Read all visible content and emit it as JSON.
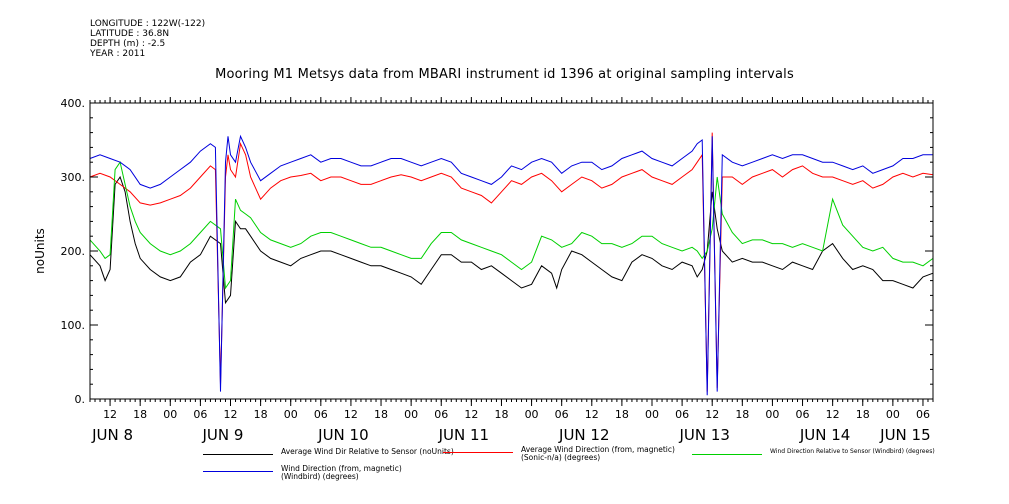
{
  "header": {
    "longitude": "LONGITUDE : 122W(-122)",
    "latitude": "LATITUDE : 36.8N",
    "depth": "DEPTH (m) : -2.5",
    "year": "YEAR : 2011"
  },
  "chart_data": {
    "type": "line",
    "title": "Mooring M1 Metsys data from MBARI instrument id 1396 at original sampling intervals",
    "ylabel": "noUnits",
    "xlabel": "",
    "ylim": [
      0,
      400
    ],
    "yticks": [
      0,
      100,
      200,
      300,
      400
    ],
    "ytick_labels": [
      "0.",
      "100.",
      "200.",
      "300.",
      "400."
    ],
    "x_unit": "hours since 2011-06-08 00:00",
    "xlim": [
      8,
      176
    ],
    "hour_ticks": [
      {
        "x": 12,
        "label": "12"
      },
      {
        "x": 18,
        "label": "18"
      },
      {
        "x": 24,
        "label": "00"
      },
      {
        "x": 30,
        "label": "06"
      },
      {
        "x": 36,
        "label": "12"
      },
      {
        "x": 42,
        "label": "18"
      },
      {
        "x": 48,
        "label": "00"
      },
      {
        "x": 54,
        "label": "06"
      },
      {
        "x": 60,
        "label": "12"
      },
      {
        "x": 66,
        "label": "18"
      },
      {
        "x": 72,
        "label": "00"
      },
      {
        "x": 78,
        "label": "06"
      },
      {
        "x": 84,
        "label": "12"
      },
      {
        "x": 90,
        "label": "18"
      },
      {
        "x": 96,
        "label": "00"
      },
      {
        "x": 102,
        "label": "06"
      },
      {
        "x": 108,
        "label": "12"
      },
      {
        "x": 114,
        "label": "18"
      },
      {
        "x": 120,
        "label": "00"
      },
      {
        "x": 126,
        "label": "06"
      },
      {
        "x": 132,
        "label": "12"
      },
      {
        "x": 138,
        "label": "18"
      },
      {
        "x": 144,
        "label": "00"
      },
      {
        "x": 150,
        "label": "06"
      },
      {
        "x": 156,
        "label": "12"
      },
      {
        "x": 162,
        "label": "18"
      },
      {
        "x": 168,
        "label": "00"
      },
      {
        "x": 174,
        "label": "06"
      }
    ],
    "day_labels": [
      {
        "x": 12.5,
        "label": "JUN  8"
      },
      {
        "x": 34.5,
        "label": "JUN  9"
      },
      {
        "x": 58.5,
        "label": "JUN 10"
      },
      {
        "x": 82.5,
        "label": "JUN 11"
      },
      {
        "x": 106.5,
        "label": "JUN 12"
      },
      {
        "x": 130.5,
        "label": "JUN 13"
      },
      {
        "x": 154.5,
        "label": "JUN 14"
      },
      {
        "x": 170.5,
        "label": "JUN 15"
      }
    ],
    "series": [
      {
        "name": "Average Wind Dir Relative to Sensor (noUnits)",
        "color": "#000000",
        "x": [
          8,
          10,
          11,
          12,
          13,
          14,
          15,
          16,
          17,
          18,
          20,
          22,
          24,
          26,
          28,
          30,
          32,
          34,
          35,
          36,
          37,
          38,
          39,
          40,
          42,
          44,
          46,
          48,
          50,
          52,
          54,
          56,
          58,
          60,
          62,
          64,
          66,
          68,
          70,
          72,
          74,
          76,
          78,
          80,
          82,
          84,
          86,
          88,
          90,
          92,
          94,
          96,
          98,
          100,
          101,
          102,
          104,
          106,
          108,
          110,
          112,
          114,
          116,
          118,
          120,
          122,
          124,
          126,
          128,
          129,
          130,
          131,
          132,
          133,
          134,
          136,
          138,
          140,
          142,
          144,
          146,
          148,
          150,
          152,
          154,
          156,
          158,
          160,
          162,
          164,
          166,
          168,
          170,
          172,
          174,
          176
        ],
        "y": [
          195,
          180,
          160,
          175,
          290,
          300,
          280,
          240,
          210,
          190,
          175,
          165,
          160,
          165,
          185,
          195,
          220,
          210,
          130,
          140,
          240,
          230,
          230,
          220,
          200,
          190,
          185,
          180,
          190,
          195,
          200,
          200,
          195,
          190,
          185,
          180,
          180,
          175,
          170,
          165,
          155,
          175,
          195,
          195,
          185,
          185,
          175,
          180,
          170,
          160,
          150,
          155,
          180,
          170,
          150,
          175,
          200,
          195,
          185,
          175,
          165,
          160,
          185,
          195,
          190,
          180,
          175,
          185,
          180,
          165,
          175,
          200,
          280,
          230,
          200,
          185,
          190,
          185,
          185,
          180,
          175,
          185,
          180,
          175,
          200,
          210,
          190,
          175,
          180,
          175,
          160,
          160,
          155,
          150,
          165,
          170
        ]
      },
      {
        "name": "Average Wind Direction (from, magnetic) (Sonic-n/a) (degrees)",
        "color": "#ff0000",
        "x": [
          8,
          10,
          12,
          14,
          16,
          18,
          20,
          22,
          24,
          26,
          28,
          30,
          32,
          33,
          34,
          35,
          35.5,
          36,
          37,
          38,
          39,
          40,
          42,
          44,
          46,
          48,
          50,
          52,
          54,
          56,
          58,
          60,
          62,
          64,
          66,
          68,
          70,
          72,
          74,
          76,
          78,
          80,
          82,
          84,
          86,
          88,
          90,
          92,
          94,
          96,
          98,
          100,
          102,
          104,
          106,
          108,
          110,
          112,
          114,
          116,
          118,
          120,
          122,
          124,
          126,
          128,
          129,
          130,
          131,
          132,
          133,
          134,
          136,
          138,
          140,
          142,
          144,
          146,
          148,
          150,
          152,
          154,
          156,
          158,
          160,
          162,
          164,
          166,
          168,
          170,
          172,
          174,
          176
        ],
        "y": [
          300,
          305,
          300,
          290,
          280,
          265,
          262,
          265,
          270,
          275,
          285,
          300,
          315,
          310,
          20,
          300,
          330,
          310,
          300,
          345,
          330,
          300,
          270,
          285,
          295,
          300,
          302,
          305,
          295,
          300,
          300,
          295,
          290,
          290,
          295,
          300,
          303,
          300,
          295,
          300,
          305,
          300,
          285,
          280,
          275,
          265,
          280,
          295,
          290,
          300,
          305,
          295,
          280,
          290,
          300,
          295,
          285,
          290,
          300,
          305,
          310,
          300,
          295,
          290,
          300,
          310,
          320,
          330,
          10,
          360,
          15,
          300,
          300,
          290,
          300,
          305,
          310,
          300,
          310,
          315,
          305,
          300,
          300,
          295,
          290,
          295,
          285,
          290,
          300,
          305,
          300,
          305,
          303
        ]
      },
      {
        "name": "Wind Direction Relative to Sensor (Windbird) (degrees)",
        "color": "#00d000",
        "x": [
          8,
          10,
          11,
          12,
          13,
          14,
          15,
          16,
          17,
          18,
          20,
          22,
          24,
          26,
          28,
          30,
          32,
          34,
          35,
          36,
          37,
          38,
          39,
          40,
          42,
          44,
          46,
          48,
          50,
          52,
          54,
          56,
          58,
          60,
          62,
          64,
          66,
          68,
          70,
          72,
          74,
          76,
          78,
          80,
          82,
          84,
          86,
          88,
          90,
          92,
          94,
          96,
          98,
          100,
          102,
          104,
          106,
          108,
          110,
          112,
          114,
          116,
          118,
          120,
          122,
          124,
          126,
          128,
          129,
          130,
          131,
          132,
          133,
          134,
          136,
          138,
          140,
          142,
          144,
          146,
          148,
          150,
          152,
          154,
          156,
          158,
          160,
          162,
          164,
          166,
          168,
          170,
          172,
          174,
          176
        ],
        "y": [
          215,
          200,
          190,
          195,
          310,
          320,
          290,
          260,
          240,
          225,
          210,
          200,
          195,
          200,
          210,
          225,
          240,
          230,
          150,
          160,
          270,
          255,
          250,
          245,
          225,
          215,
          210,
          205,
          210,
          220,
          225,
          225,
          220,
          215,
          210,
          205,
          205,
          200,
          195,
          190,
          190,
          210,
          225,
          225,
          215,
          210,
          205,
          200,
          195,
          185,
          175,
          185,
          220,
          215,
          205,
          210,
          225,
          220,
          210,
          210,
          205,
          210,
          220,
          220,
          210,
          205,
          200,
          205,
          200,
          190,
          200,
          230,
          300,
          250,
          225,
          210,
          215,
          215,
          210,
          210,
          205,
          210,
          205,
          200,
          270,
          235,
          220,
          205,
          200,
          205,
          190,
          185,
          185,
          180,
          190
        ]
      },
      {
        "name": "Wind Direction (from, magnetic) (Windbird) (degrees)",
        "color": "#0000dd",
        "x": [
          8,
          10,
          12,
          14,
          16,
          18,
          20,
          22,
          24,
          26,
          28,
          30,
          32,
          33,
          34,
          35,
          35.5,
          36,
          37,
          38,
          39,
          40,
          42,
          44,
          46,
          48,
          50,
          52,
          54,
          56,
          58,
          60,
          62,
          64,
          66,
          68,
          70,
          72,
          74,
          76,
          78,
          80,
          82,
          84,
          86,
          88,
          90,
          92,
          94,
          96,
          98,
          100,
          102,
          104,
          106,
          108,
          110,
          112,
          114,
          116,
          118,
          120,
          122,
          124,
          126,
          128,
          129,
          130,
          131,
          132,
          133,
          134,
          136,
          138,
          140,
          142,
          144,
          146,
          148,
          150,
          152,
          154,
          156,
          158,
          160,
          162,
          164,
          166,
          168,
          170,
          172,
          174,
          176
        ],
        "y": [
          325,
          330,
          325,
          320,
          310,
          290,
          285,
          290,
          300,
          310,
          320,
          335,
          345,
          340,
          10,
          320,
          355,
          330,
          320,
          355,
          340,
          320,
          295,
          305,
          315,
          320,
          325,
          330,
          320,
          325,
          325,
          320,
          315,
          315,
          320,
          325,
          325,
          320,
          315,
          320,
          325,
          320,
          305,
          300,
          295,
          290,
          300,
          315,
          310,
          320,
          325,
          320,
          305,
          315,
          320,
          320,
          310,
          315,
          325,
          330,
          335,
          325,
          320,
          315,
          325,
          335,
          345,
          350,
          5,
          355,
          10,
          330,
          320,
          315,
          320,
          325,
          330,
          325,
          330,
          330,
          325,
          320,
          320,
          315,
          310,
          315,
          305,
          310,
          315,
          325,
          325,
          330,
          330
        ]
      }
    ],
    "legend_placement": "bottom",
    "grid": false
  }
}
